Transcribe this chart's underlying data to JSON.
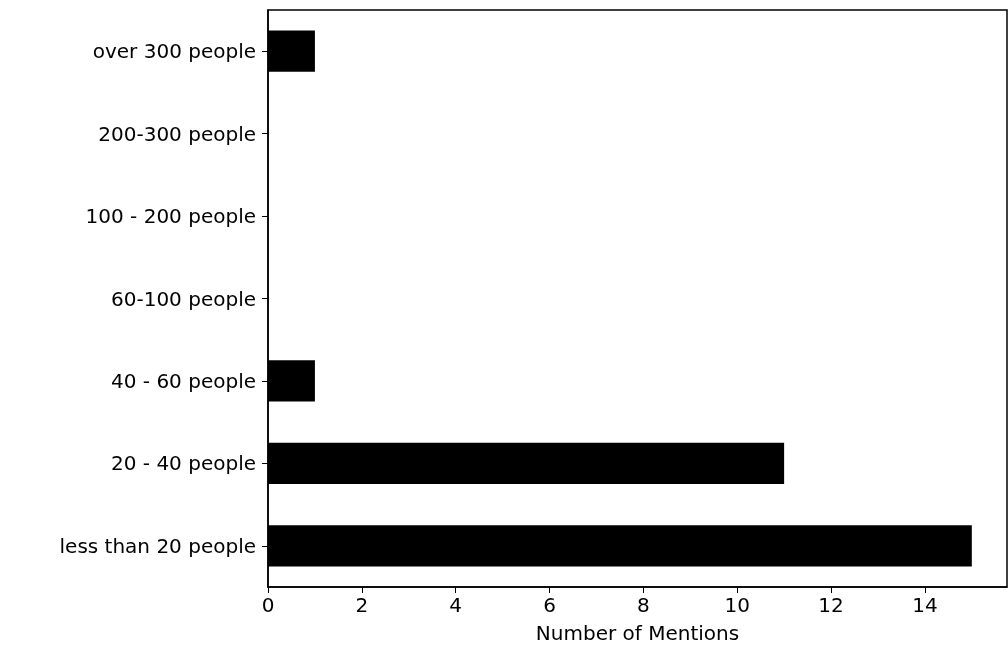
{
  "chart_data": {
    "type": "bar",
    "orientation": "horizontal",
    "xlabel": "Number of Mentions",
    "categories": [
      "over 300 people",
      "200-300 people",
      "100 - 200 people",
      "60-100 people",
      "40 - 60 people",
      "20 - 40 people",
      "less than 20 people"
    ],
    "values": [
      1,
      0,
      0,
      0,
      1,
      11,
      15
    ],
    "color": "#000000",
    "xlim": [
      0,
      15.75
    ],
    "xticks": [
      0,
      2,
      4,
      6,
      8,
      10,
      12,
      14
    ],
    "grid": false
  }
}
